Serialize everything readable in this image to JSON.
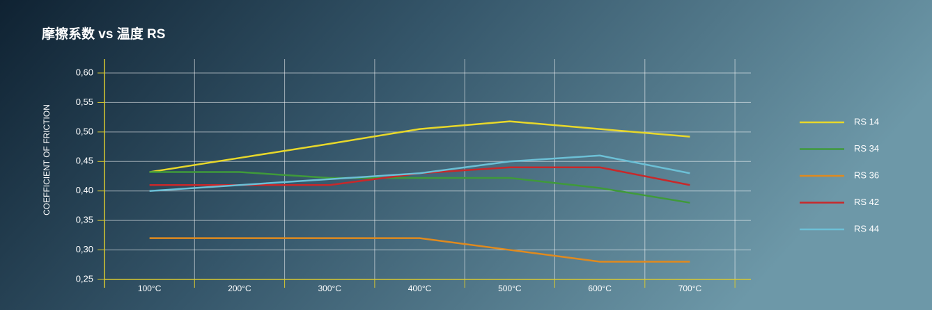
{
  "chart_data": {
    "type": "line",
    "title": "摩擦系数 vs 温度 RS",
    "y_label": "COEFFICIENT OF FRICTION",
    "categories": [
      "100°C",
      "200°C",
      "300°C",
      "400°C",
      "500°C",
      "600°C",
      "700°C"
    ],
    "series": [
      {
        "name": "RS 14",
        "color": "#e8d82a",
        "values": [
          0.432,
          0.456,
          0.48,
          0.505,
          0.518,
          0.505,
          0.492
        ]
      },
      {
        "name": "RS 34",
        "color": "#3f9a3a",
        "values": [
          0.432,
          0.432,
          0.422,
          0.422,
          0.422,
          0.405,
          0.38
        ]
      },
      {
        "name": "RS 36",
        "color": "#e08a1e",
        "values": [
          0.32,
          0.32,
          0.32,
          0.32,
          0.3,
          0.28,
          0.28
        ]
      },
      {
        "name": "RS 42",
        "color": "#c8282a",
        "values": [
          0.41,
          0.41,
          0.41,
          0.43,
          0.44,
          0.44,
          0.41
        ]
      },
      {
        "name": "RS 44",
        "color": "#6cc0d6",
        "values": [
          0.4,
          0.41,
          0.42,
          0.43,
          0.45,
          0.46,
          0.43
        ]
      }
    ],
    "ylim": [
      0.25,
      0.6
    ],
    "yticks": [
      {
        "value": 0.25,
        "label": "0,25"
      },
      {
        "value": 0.3,
        "label": "0,30"
      },
      {
        "value": 0.35,
        "label": "0,35"
      },
      {
        "value": 0.4,
        "label": "0,40"
      },
      {
        "value": 0.45,
        "label": "0,45"
      },
      {
        "value": 0.5,
        "label": "0,50"
      },
      {
        "value": 0.55,
        "label": "0,55"
      },
      {
        "value": 0.6,
        "label": "0,60"
      }
    ],
    "grid": true,
    "legend": "right"
  }
}
